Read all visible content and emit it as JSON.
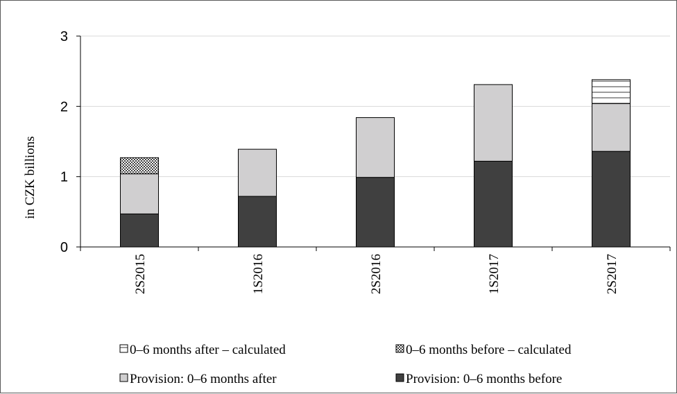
{
  "chart_data": {
    "type": "bar",
    "stacked": true,
    "title": "",
    "xlabel": "",
    "ylabel": "in CZK billions",
    "ylim": [
      0,
      3
    ],
    "yticks": [
      0,
      1,
      2,
      3
    ],
    "grid": true,
    "legend_position": "bottom",
    "categories": [
      "2S2015",
      "1S2016",
      "2S2016",
      "1S2017",
      "2S2017"
    ],
    "series": [
      {
        "name": "Provision: 0–6 months before",
        "values": [
          0.47,
          0.72,
          0.99,
          1.22,
          1.36
        ],
        "fill": "dark"
      },
      {
        "name": "Provision: 0–6 months after",
        "values": [
          0.57,
          0.67,
          0.85,
          1.09,
          0.68
        ],
        "fill": "light"
      },
      {
        "name": "0–6 months before – calculated",
        "values": [
          0.23,
          0,
          0,
          0,
          0
        ],
        "fill": "checker"
      },
      {
        "name": "0–6 months after – calculated",
        "values": [
          0,
          0,
          0,
          0,
          0.34
        ],
        "fill": "stripes"
      }
    ],
    "legend_order": [
      3,
      2,
      1,
      0
    ],
    "colors": {
      "dark": "#404040",
      "light": "#d0cfd0",
      "outline": "#000000",
      "grid": "#d9d9d9"
    }
  }
}
